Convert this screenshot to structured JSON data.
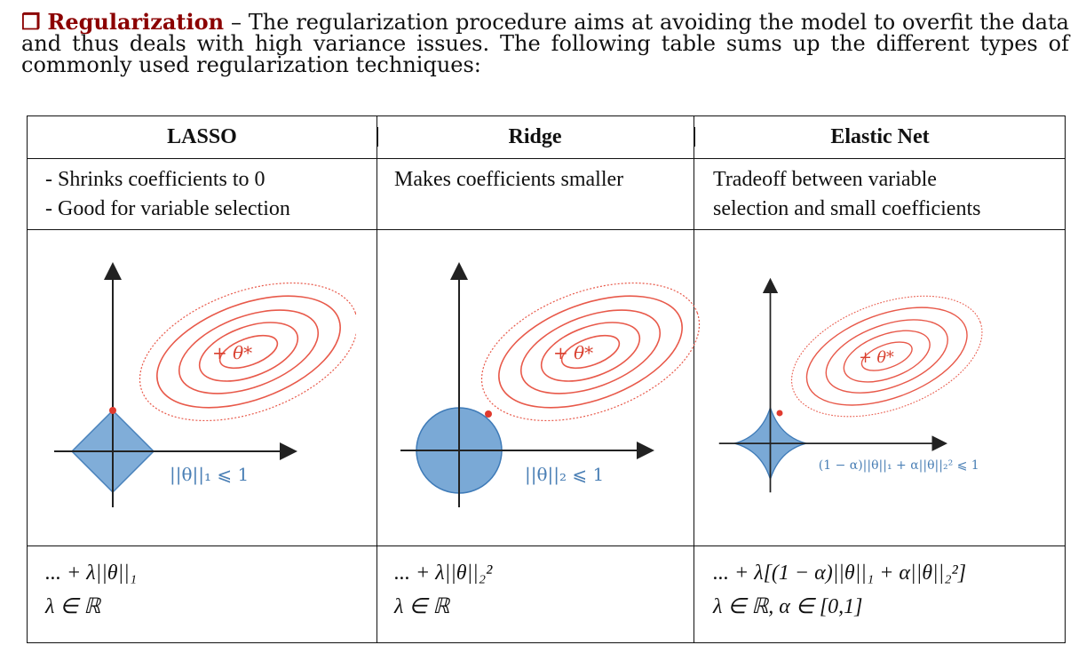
{
  "intro": {
    "bullet": "❒",
    "keyword": "Regularization",
    "text": "– The regularization procedure aims at avoiding the model to overfit the data and thus deals with high variance issues. The following table sums up the different types of commonly used regularization techniques:"
  },
  "table": {
    "headers": [
      "LASSO",
      "Ridge",
      "Elastic Net"
    ],
    "descriptions": [
      [
        "- Shrinks coefficients to 0",
        "- Good for variable selection"
      ],
      [
        "Makes coefficients smaller"
      ],
      [
        "Tradeoff between variable",
        "selection and small coefficients"
      ]
    ],
    "figures": [
      {
        "constraint": "||θ||₁ ⩽ 1",
        "optimum": "+ θ*"
      },
      {
        "constraint": "||θ||₂ ⩽ 1",
        "optimum": "+ θ*"
      },
      {
        "constraint": "(1 − α)||θ||₁ + α||θ||₂² ⩽ 1",
        "optimum": "+ θ*"
      }
    ],
    "equations": [
      {
        "line1": "... + λ||θ||₁",
        "line2": "λ ∈ ℝ"
      },
      {
        "line1": "... + λ||θ||₂²",
        "line2": "λ ∈ ℝ"
      },
      {
        "line1": "... + λ[(1 − α)||θ||₁ + α||θ||₂²]",
        "line2": "λ ∈ ℝ,   α ∈ [0,1]"
      }
    ]
  },
  "colors": {
    "accent": "#8b0000",
    "ellipse": "#e8594a",
    "region": "#7aa9d6",
    "region_edge": "#3f7bb8"
  }
}
